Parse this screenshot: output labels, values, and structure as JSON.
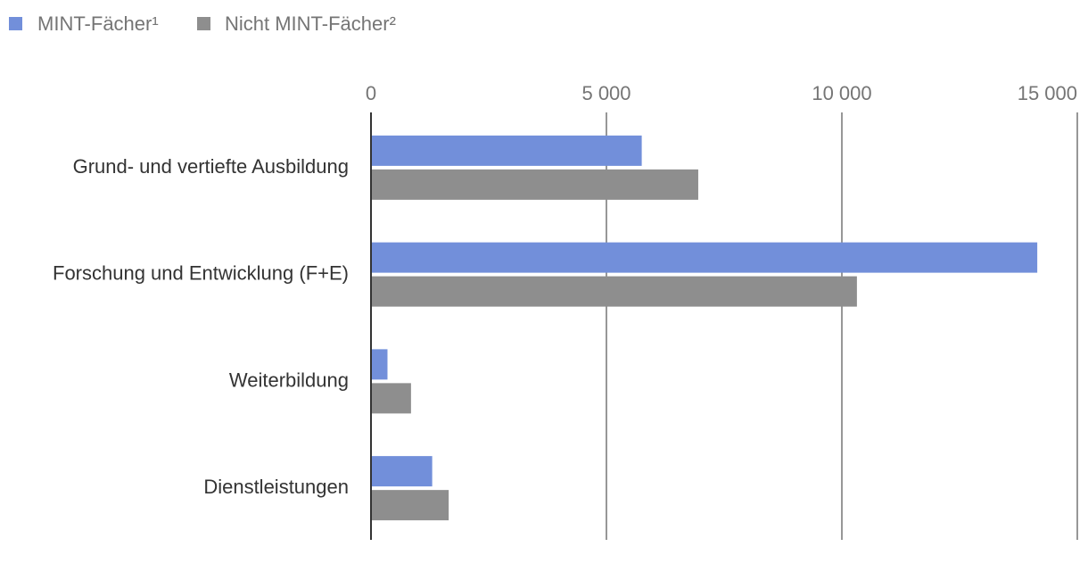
{
  "chart_data": {
    "type": "bar",
    "orientation": "horizontal",
    "categories": [
      "Grund- und vertiefte Ausbildung",
      "Forschung und Entwicklung (F+E)",
      "Weiterbildung",
      "Dienstleistungen"
    ],
    "series": [
      {
        "name": "MINT-Fächer¹",
        "color": "#728fda",
        "values": [
          5750,
          14150,
          350,
          1300
        ]
      },
      {
        "name": "Nicht MINT-Fächer²",
        "color": "#8e8e8e",
        "values": [
          6950,
          10320,
          850,
          1650
        ]
      }
    ],
    "xlim": [
      0,
      15000
    ],
    "xticks": [
      0,
      5000,
      10000,
      15000
    ],
    "xtick_labels": [
      "0",
      "5 000",
      "10 000",
      "15 000"
    ],
    "legend_position": "top-left",
    "grid": true,
    "title": "",
    "xlabel": "",
    "ylabel": ""
  }
}
